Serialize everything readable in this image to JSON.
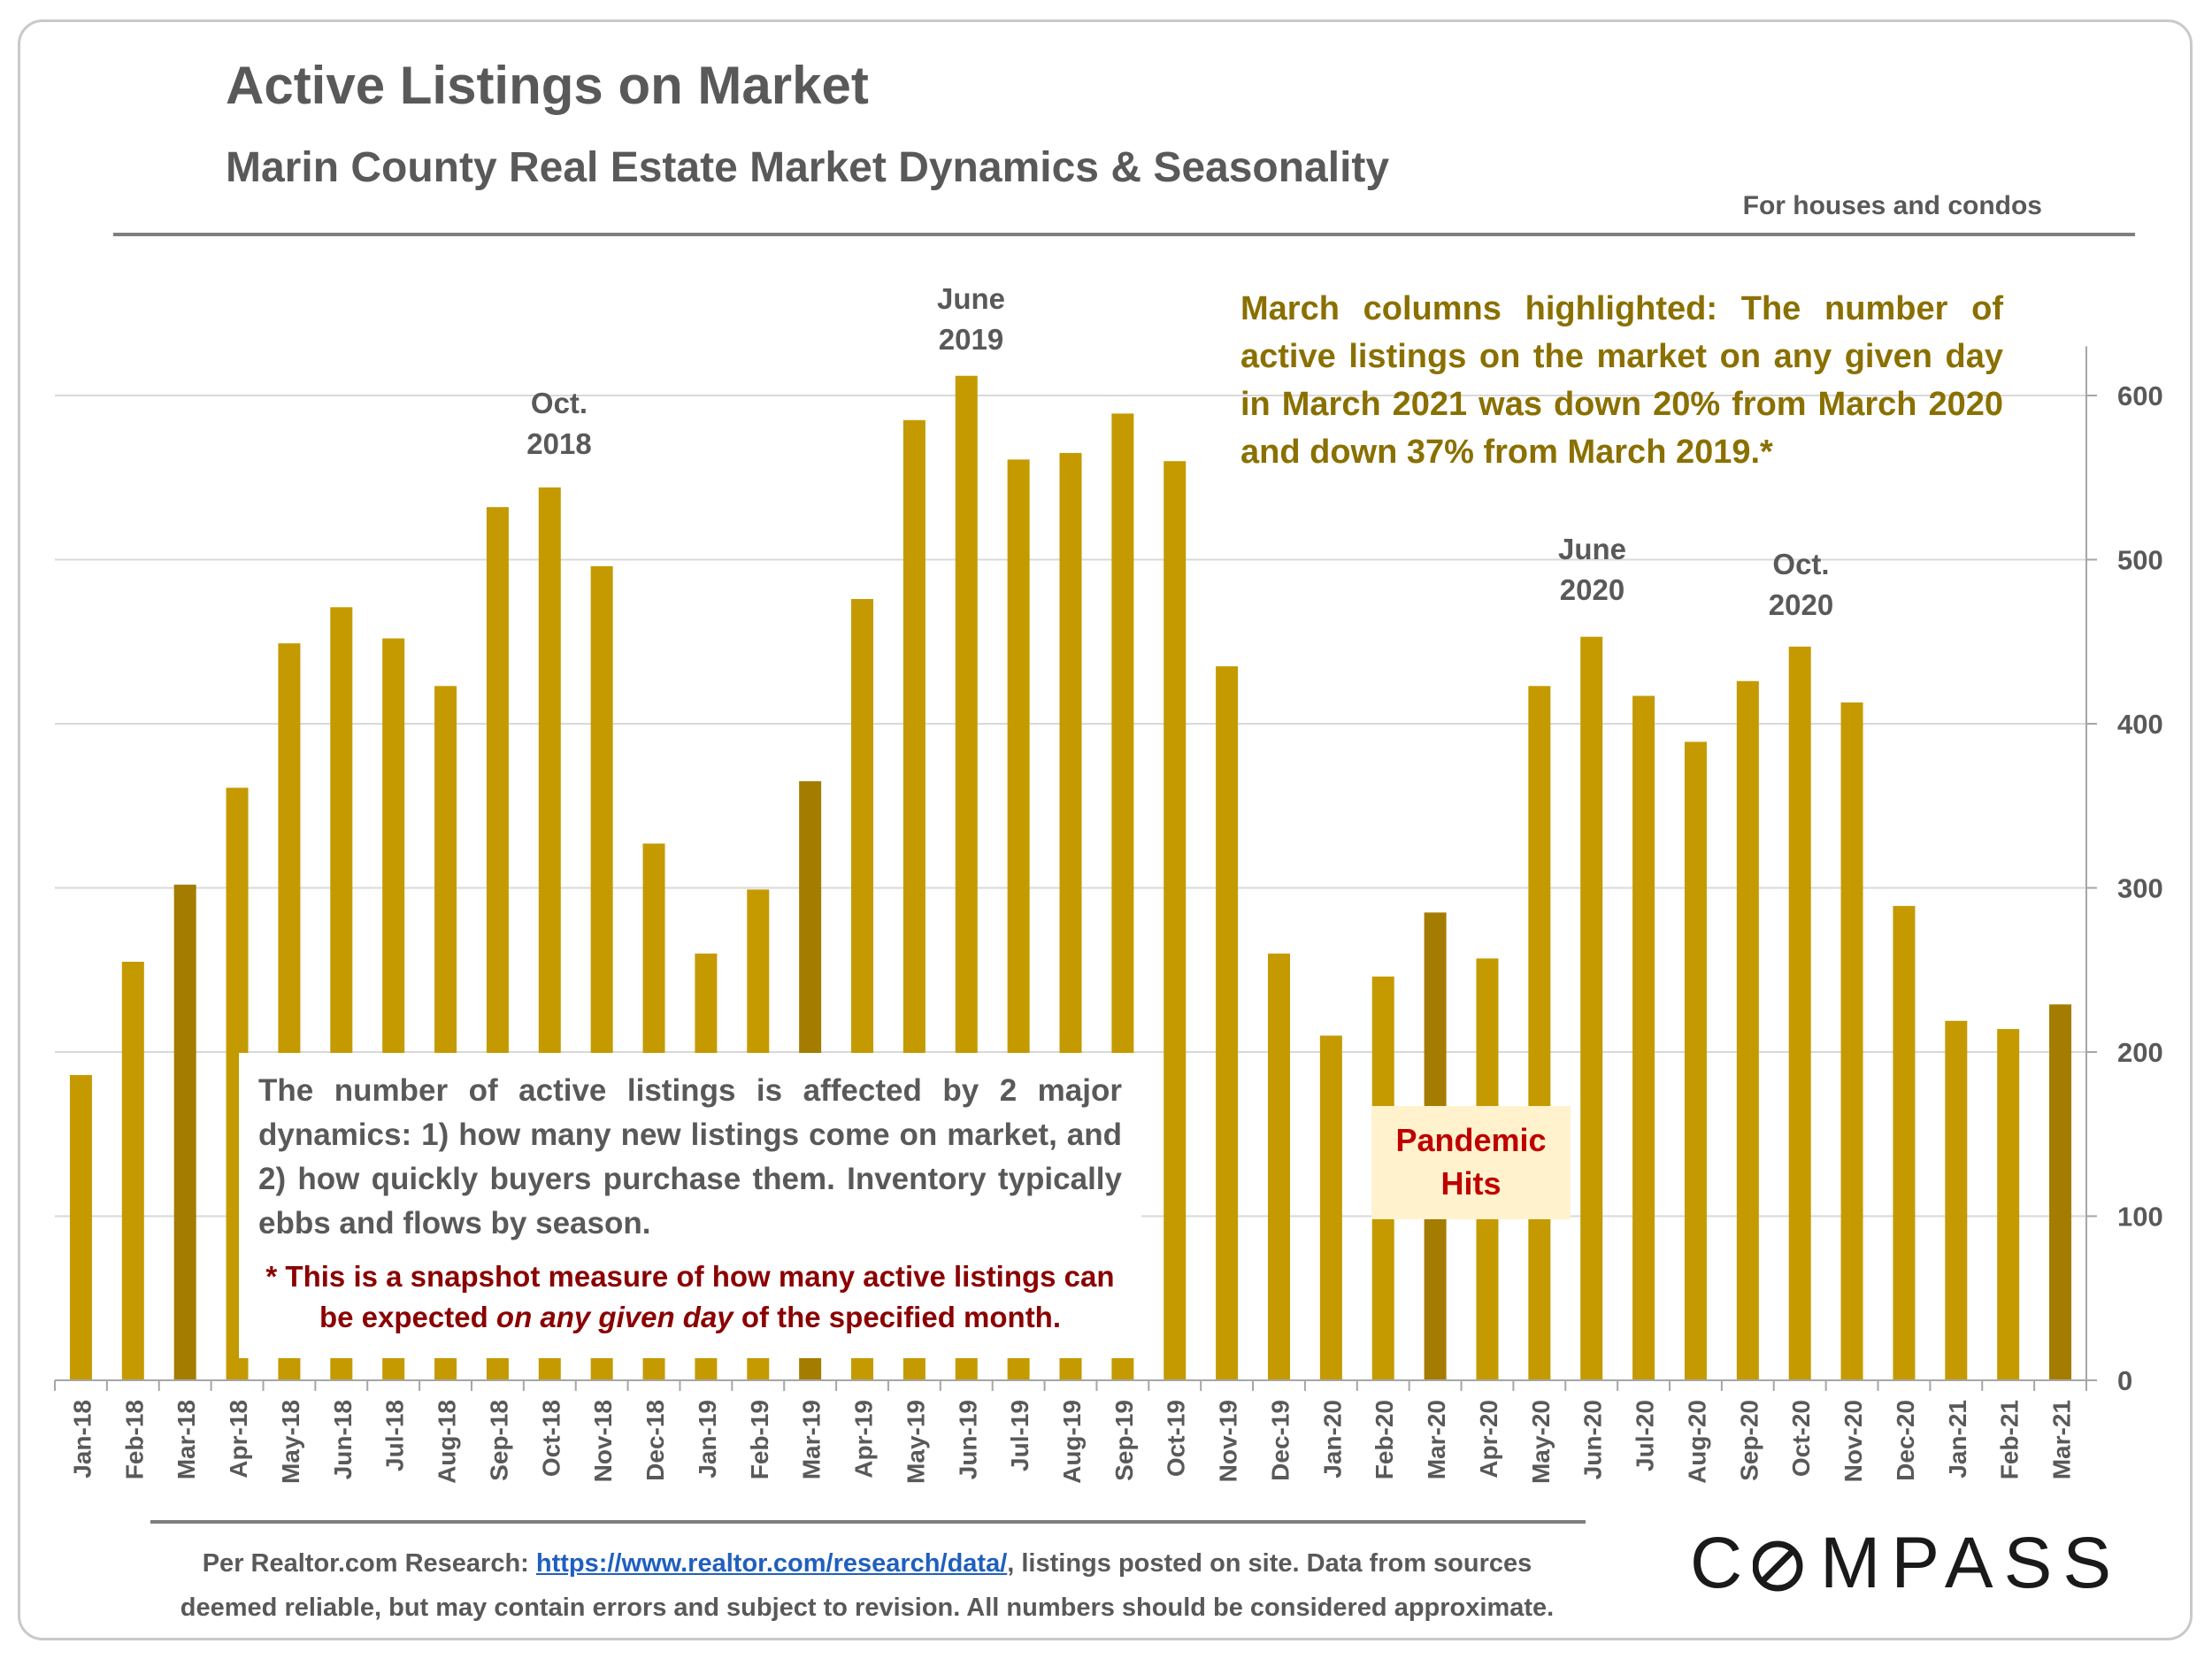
{
  "header": {
    "title": "Active Listings on Market",
    "subtitle": "Marin County Real Estate Market Dynamics & Seasonality",
    "scope": "For houses and condos"
  },
  "annotations": {
    "oct2018": "Oct.\n2018",
    "jun2019": "June\n2019",
    "jun2020": "June\n2020",
    "oct2020": "Oct.\n2020",
    "highlight_note": "March columns highlighted: The number of active listings on the market on any given day in March 2021 was down 20% from March 2020 and down 37% from March 2019.*",
    "explain": "The number of active listings is affected by 2 major dynamics: 1) how many new listings come on market, and 2) how quickly buyers purchase them. Inventory typically ebbs and flows by season.",
    "snapshot_prefix": "* This is a snapshot measure of how many active listings can be expected ",
    "snapshot_em": "on any given day",
    "snapshot_suffix": " of the specified month.",
    "pandemic": "Pandemic\nHits"
  },
  "footer": {
    "prefix": "Per Realtor.com Research:  ",
    "link": "https://www.realtor.com/research/data/",
    "after_link": ", listings posted on site. Data from sources",
    "line2": "deemed reliable, but may contain errors and subject to revision. All numbers should be considered approximate."
  },
  "brand": {
    "pre": "C",
    "o": "O",
    "post": "MPASS"
  },
  "colors": {
    "bar": "#c49a00",
    "highlight": "#a47c00",
    "axis": "#a6a6a6",
    "grid": "#d9d9d9",
    "text": "#595959"
  },
  "chart_data": {
    "type": "bar",
    "title": "Active Listings on Market",
    "categories": [
      "Jan-18",
      "Feb-18",
      "Mar-18",
      "Apr-18",
      "May-18",
      "Jun-18",
      "Jul-18",
      "Aug-18",
      "Sep-18",
      "Oct-18",
      "Nov-18",
      "Dec-18",
      "Jan-19",
      "Feb-19",
      "Mar-19",
      "Apr-19",
      "May-19",
      "Jun-19",
      "Jul-19",
      "Aug-19",
      "Sep-19",
      "Oct-19",
      "Nov-19",
      "Dec-19",
      "Jan-20",
      "Feb-20",
      "Mar-20",
      "Apr-20",
      "May-20",
      "Jun-20",
      "Jul-20",
      "Aug-20",
      "Sep-20",
      "Oct-20",
      "Nov-20",
      "Dec-20",
      "Jan-21",
      "Feb-21",
      "Mar-21"
    ],
    "values": [
      186,
      255,
      302,
      361,
      449,
      471,
      452,
      423,
      532,
      544,
      496,
      327,
      260,
      299,
      365,
      476,
      585,
      612,
      561,
      565,
      589,
      560,
      435,
      260,
      210,
      246,
      285,
      257,
      423,
      453,
      417,
      389,
      426,
      447,
      413,
      289,
      219,
      214,
      229
    ],
    "highlighted": [
      "Mar-18",
      "Mar-19",
      "Mar-20",
      "Mar-21"
    ],
    "y_axis": "right",
    "ylim": [
      0,
      630
    ],
    "yticks": [
      0,
      100,
      200,
      300,
      400,
      500,
      600
    ],
    "xlabel": "",
    "ylabel": ""
  }
}
